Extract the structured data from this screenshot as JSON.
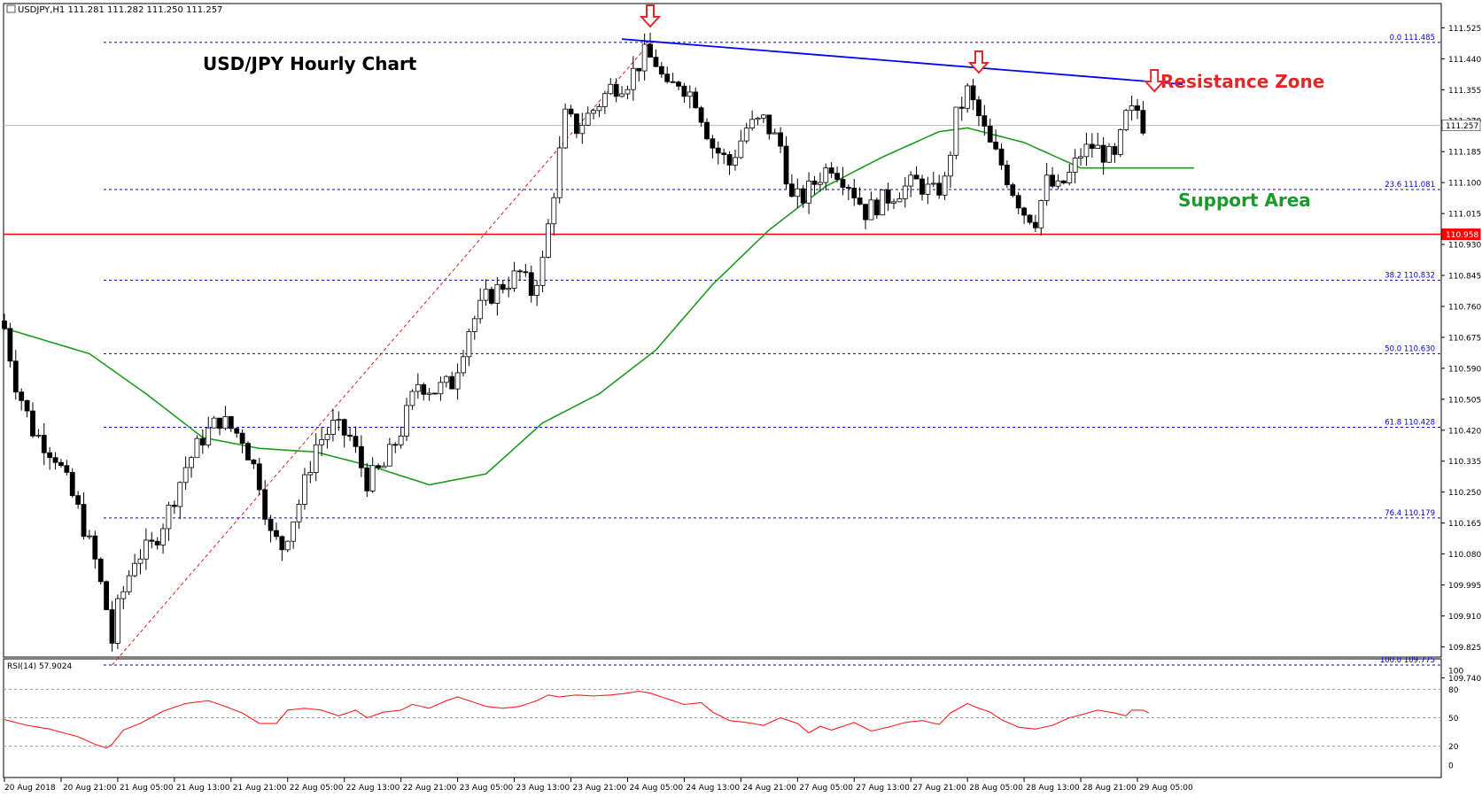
{
  "chart_data": {
    "type": "candlestick",
    "header": "USDJPY,H1  111.281 111.282 111.250 111.257",
    "title": "USD/JPY Hourly Chart",
    "annotations": {
      "resistance": "Resistance Zone",
      "support": "Support Area"
    },
    "ylim": [
      109.74,
      111.56
    ],
    "y_ticks": [
      "111.525",
      "111.440",
      "111.355",
      "111.270",
      "111.185",
      "111.100",
      "111.015",
      "110.930",
      "110.845",
      "110.760",
      "110.675",
      "110.590",
      "110.505",
      "110.420",
      "110.335",
      "110.250",
      "110.165",
      "110.080",
      "109.995",
      "109.910",
      "109.825",
      "109.740"
    ],
    "current_price": "111.257",
    "support_price": "110.958",
    "fib_levels": [
      {
        "label": "0.0 111.485",
        "value": 111.485
      },
      {
        "label": "23.6 111.081",
        "value": 111.081
      },
      {
        "label": "38.2 110.832",
        "value": 110.832
      },
      {
        "label": "50.0 110.630",
        "value": 110.63
      },
      {
        "label": "61.8 110.428",
        "value": 110.428
      },
      {
        "label": "76.4 110.179",
        "value": 110.179
      },
      {
        "label": "100.0 109.775",
        "value": 109.775
      }
    ],
    "x_ticks": [
      "20 Aug 2018",
      "20 Aug 21:00",
      "21 Aug 05:00",
      "21 Aug 13:00",
      "21 Aug 21:00",
      "22 Aug 05:00",
      "22 Aug 13:00",
      "22 Aug 21:00",
      "23 Aug 05:00",
      "23 Aug 13:00",
      "23 Aug 21:00",
      "24 Aug 05:00",
      "24 Aug 13:00",
      "24 Aug 21:00",
      "27 Aug 05:00",
      "27 Aug 13:00",
      "27 Aug 21:00",
      "28 Aug 05:00",
      "28 Aug 13:00",
      "28 Aug 21:00",
      "29 Aug 05:00"
    ],
    "close_anchors": [
      [
        0,
        110.7
      ],
      [
        2,
        110.55
      ],
      [
        5,
        110.42
      ],
      [
        9,
        110.35
      ],
      [
        13,
        110.2
      ],
      [
        16,
        110.06
      ],
      [
        18,
        109.93
      ],
      [
        19,
        109.84
      ],
      [
        20,
        109.93
      ],
      [
        23,
        110.07
      ],
      [
        26,
        110.1
      ],
      [
        29,
        110.2
      ],
      [
        32,
        110.32
      ],
      [
        35,
        110.4
      ],
      [
        38,
        110.45
      ],
      [
        42,
        110.4
      ],
      [
        45,
        110.28
      ],
      [
        47,
        110.13
      ],
      [
        49,
        110.1
      ],
      [
        52,
        110.22
      ],
      [
        55,
        110.38
      ],
      [
        58,
        110.43
      ],
      [
        61,
        110.4
      ],
      [
        64,
        110.28
      ],
      [
        67,
        110.32
      ],
      [
        70,
        110.42
      ],
      [
        73,
        110.55
      ],
      [
        76,
        110.53
      ],
      [
        79,
        110.55
      ],
      [
        82,
        110.7
      ],
      [
        85,
        110.78
      ],
      [
        88,
        110.82
      ],
      [
        91,
        110.85
      ],
      [
        93,
        110.8
      ],
      [
        95,
        110.88
      ],
      [
        97,
        111.08
      ],
      [
        99,
        111.28
      ],
      [
        101,
        111.25
      ],
      [
        104,
        111.3
      ],
      [
        107,
        111.36
      ],
      [
        110,
        111.38
      ],
      [
        113,
        111.45
      ],
      [
        115,
        111.43
      ],
      [
        117,
        111.35
      ],
      [
        119,
        111.38
      ],
      [
        122,
        111.33
      ],
      [
        125,
        111.2
      ],
      [
        128,
        111.15
      ],
      [
        131,
        111.25
      ],
      [
        134,
        111.27
      ],
      [
        137,
        111.2
      ],
      [
        139,
        111.05
      ],
      [
        141,
        111.06
      ],
      [
        144,
        111.12
      ],
      [
        146,
        111.15
      ],
      [
        149,
        111.1
      ],
      [
        152,
        111.02
      ],
      [
        155,
        111.05
      ],
      [
        158,
        111.08
      ],
      [
        161,
        111.1
      ],
      [
        164,
        111.07
      ],
      [
        166,
        111.1
      ],
      [
        168,
        111.28
      ],
      [
        170,
        111.35
      ],
      [
        172,
        111.28
      ],
      [
        174,
        111.2
      ],
      [
        176,
        111.15
      ],
      [
        178,
        111.08
      ],
      [
        180,
        111.02
      ],
      [
        182,
        111.0
      ],
      [
        184,
        111.1
      ],
      [
        186,
        111.08
      ],
      [
        188,
        111.12
      ],
      [
        190,
        111.18
      ],
      [
        192,
        111.2
      ],
      [
        194,
        111.18
      ],
      [
        196,
        111.16
      ],
      [
        198,
        111.28
      ],
      [
        200,
        111.3
      ],
      [
        201,
        111.26
      ]
    ],
    "ma_anchors": [
      [
        0,
        110.7
      ],
      [
        15,
        110.63
      ],
      [
        25,
        110.52
      ],
      [
        35,
        110.4
      ],
      [
        45,
        110.37
      ],
      [
        55,
        110.36
      ],
      [
        65,
        110.32
      ],
      [
        75,
        110.27
      ],
      [
        85,
        110.3
      ],
      [
        95,
        110.44
      ],
      [
        105,
        110.52
      ],
      [
        115,
        110.64
      ],
      [
        125,
        110.82
      ],
      [
        135,
        110.97
      ],
      [
        145,
        111.09
      ],
      [
        155,
        111.17
      ],
      [
        165,
        111.24
      ],
      [
        170,
        111.25
      ],
      [
        180,
        111.21
      ],
      [
        190,
        111.14
      ],
      [
        200,
        111.14
      ],
      [
        210,
        111.14
      ]
    ],
    "resistance_line": {
      "start": [
        109,
        111.494
      ],
      "end": [
        208,
        111.37
      ]
    },
    "fib_line": {
      "start": [
        19,
        109.775
      ],
      "end": [
        114,
        111.485
      ]
    },
    "arrow_positions": [
      114,
      172,
      203
    ],
    "rsi": {
      "label": "RSI(14) 57.9024",
      "levels": [
        "100",
        "80",
        "50",
        "20",
        "0"
      ],
      "anchors": [
        [
          0,
          48
        ],
        [
          4,
          42
        ],
        [
          8,
          38
        ],
        [
          13,
          30
        ],
        [
          16,
          22
        ],
        [
          18,
          18
        ],
        [
          19,
          22
        ],
        [
          21,
          37
        ],
        [
          24,
          44
        ],
        [
          28,
          57
        ],
        [
          32,
          65
        ],
        [
          36,
          68
        ],
        [
          39,
          62
        ],
        [
          42,
          55
        ],
        [
          45,
          44
        ],
        [
          48,
          44
        ],
        [
          50,
          58
        ],
        [
          53,
          60
        ],
        [
          56,
          58
        ],
        [
          59,
          52
        ],
        [
          62,
          58
        ],
        [
          64,
          50
        ],
        [
          67,
          56
        ],
        [
          70,
          58
        ],
        [
          72,
          64
        ],
        [
          75,
          60
        ],
        [
          78,
          68
        ],
        [
          80,
          72
        ],
        [
          82,
          68
        ],
        [
          85,
          62
        ],
        [
          88,
          60
        ],
        [
          91,
          62
        ],
        [
          94,
          68
        ],
        [
          96,
          74
        ],
        [
          98,
          72
        ],
        [
          101,
          74
        ],
        [
          104,
          73
        ],
        [
          107,
          74
        ],
        [
          110,
          76
        ],
        [
          112,
          78
        ],
        [
          114,
          76
        ],
        [
          117,
          70
        ],
        [
          120,
          64
        ],
        [
          123,
          66
        ],
        [
          125,
          56
        ],
        [
          128,
          47
        ],
        [
          131,
          45
        ],
        [
          134,
          42
        ],
        [
          137,
          50
        ],
        [
          140,
          44
        ],
        [
          142,
          34
        ],
        [
          144,
          41
        ],
        [
          146,
          37
        ],
        [
          150,
          45
        ],
        [
          153,
          36
        ],
        [
          156,
          40
        ],
        [
          159,
          45
        ],
        [
          162,
          47
        ],
        [
          165,
          43
        ],
        [
          167,
          55
        ],
        [
          170,
          65
        ],
        [
          172,
          60
        ],
        [
          174,
          56
        ],
        [
          176,
          48
        ],
        [
          179,
          40
        ],
        [
          182,
          38
        ],
        [
          185,
          42
        ],
        [
          188,
          50
        ],
        [
          190,
          53
        ],
        [
          193,
          58
        ],
        [
          196,
          55
        ],
        [
          198,
          52
        ],
        [
          199,
          58
        ],
        [
          201,
          58
        ],
        [
          202,
          55
        ]
      ]
    },
    "colors": {
      "bull": "#ffffff",
      "bear": "#000000",
      "ma": "#1e9a1e",
      "resistance": "#0000ff",
      "support": "#ff0000",
      "fib": "#0000c8",
      "rsi": "#ff2020",
      "annotation_red": "#e0282a",
      "annotation_green": "#1a9a2a"
    }
  }
}
